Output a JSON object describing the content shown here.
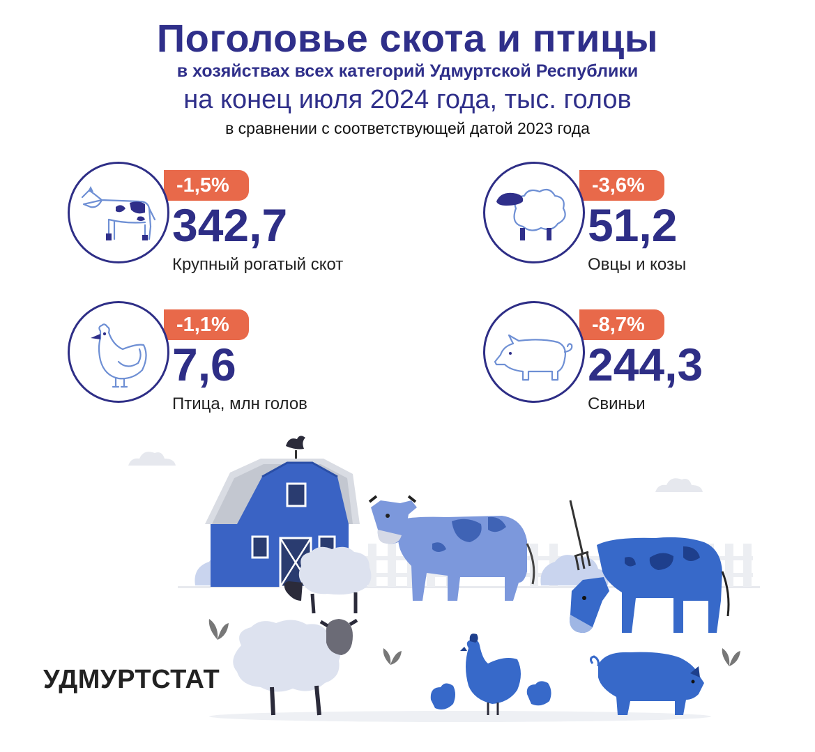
{
  "header": {
    "title": "Поголовье скота и птицы",
    "subtitle": "в хозяйствах всех категорий Удмуртской Республики",
    "period": "на конец июля 2024 года, тыс. голов",
    "comparison": "в сравнении с соответствующей датой 2023 года"
  },
  "stats": [
    {
      "change": "-1,5%",
      "value": "342,7",
      "label": "Крупный рогатый скот",
      "icon": "cow-icon"
    },
    {
      "change": "-3,6%",
      "value": "51,2",
      "label": "Овцы и козы",
      "icon": "sheep-icon"
    },
    {
      "change": "-1,1%",
      "value": "7,6",
      "label": "Птица, млн голов",
      "icon": "chicken-icon"
    },
    {
      "change": "-8,7%",
      "value": "244,3",
      "label": "Свиньи",
      "icon": "pig-icon"
    }
  ],
  "brand": "УДМУРТСТАТ",
  "colors": {
    "title": "#2f2f8a",
    "badge": "#e8694a",
    "value": "#2e2e86",
    "barn": "#3a63c4",
    "animal_light": "#6e8fd4",
    "animal_dark": "#3769c9"
  }
}
